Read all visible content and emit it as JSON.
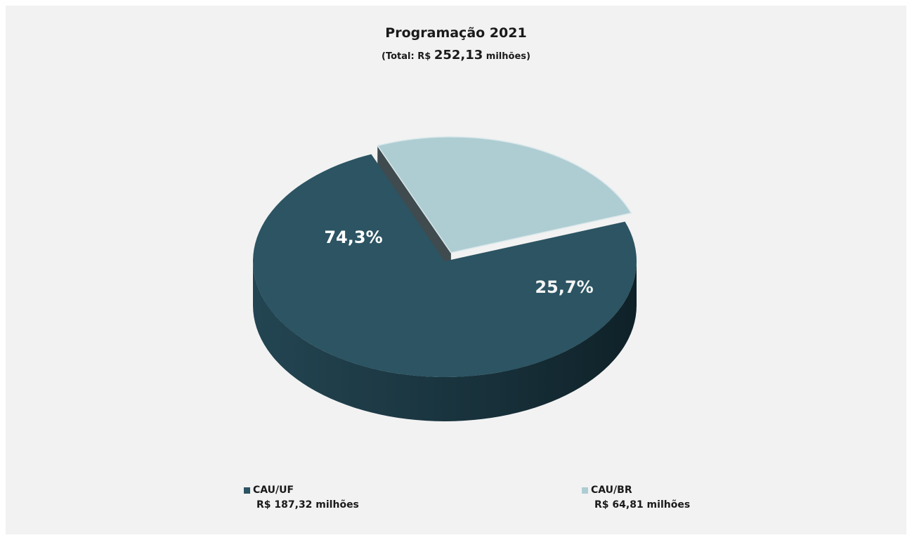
{
  "chart_data": {
    "type": "pie",
    "title": "Programação 2021",
    "subtitle": {
      "prefix": "(Total:  R$ ",
      "value": "252,13",
      "suffix": " milhões)"
    },
    "slices": [
      {
        "name": "CAU/UF",
        "percent": 74.3,
        "label": "74,3%",
        "value_label": "R$ 187,32 milhões",
        "color": "#2c5463",
        "side_color": "#1e3c47",
        "text_color": "#ffffff"
      },
      {
        "name": "CAU/BR",
        "percent": 25.7,
        "label": "25,7%",
        "value_label": "R$ 64,81 milhões",
        "color": "#aecdd3",
        "side_color": "#4b5a5e",
        "text_color": "#f4f4f4"
      }
    ],
    "legend_placement": "bottom"
  }
}
